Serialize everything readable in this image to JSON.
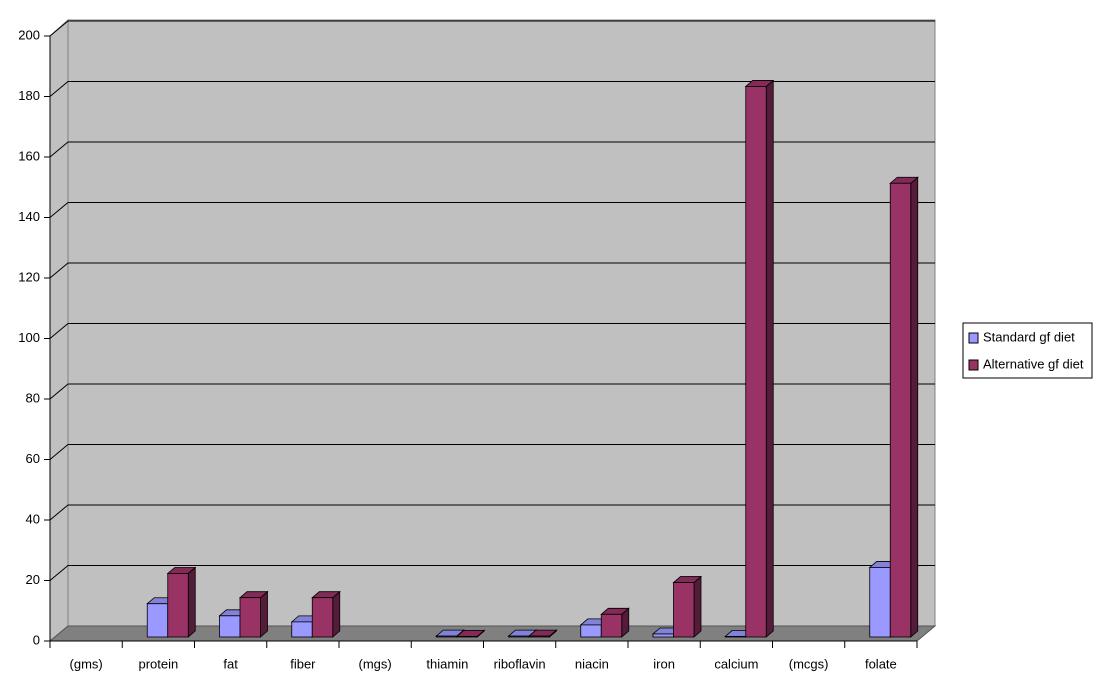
{
  "chart_data": {
    "type": "bar3d",
    "categories": [
      "(gms)",
      "protein",
      "fat",
      "fiber",
      "(mgs)",
      "thiamin",
      "riboflavin",
      "niacin",
      "iron",
      "calcium",
      "(mcgs)",
      "folate"
    ],
    "series": [
      {
        "name": "Standard gf diet",
        "color": "#9999ff",
        "values": [
          null,
          11,
          7,
          5,
          null,
          0.3,
          0.3,
          4,
          1,
          0.2,
          null,
          23
        ]
      },
      {
        "name": "Alternative gf diet",
        "color": "#993366",
        "values": [
          null,
          21,
          13,
          13,
          null,
          0.2,
          0.3,
          7.5,
          18,
          182,
          null,
          150
        ]
      }
    ],
    "ylim": [
      0,
      200
    ],
    "yticks": [
      0,
      20,
      40,
      60,
      80,
      100,
      120,
      140,
      160,
      180,
      200
    ],
    "grid": true,
    "legend": "right"
  }
}
